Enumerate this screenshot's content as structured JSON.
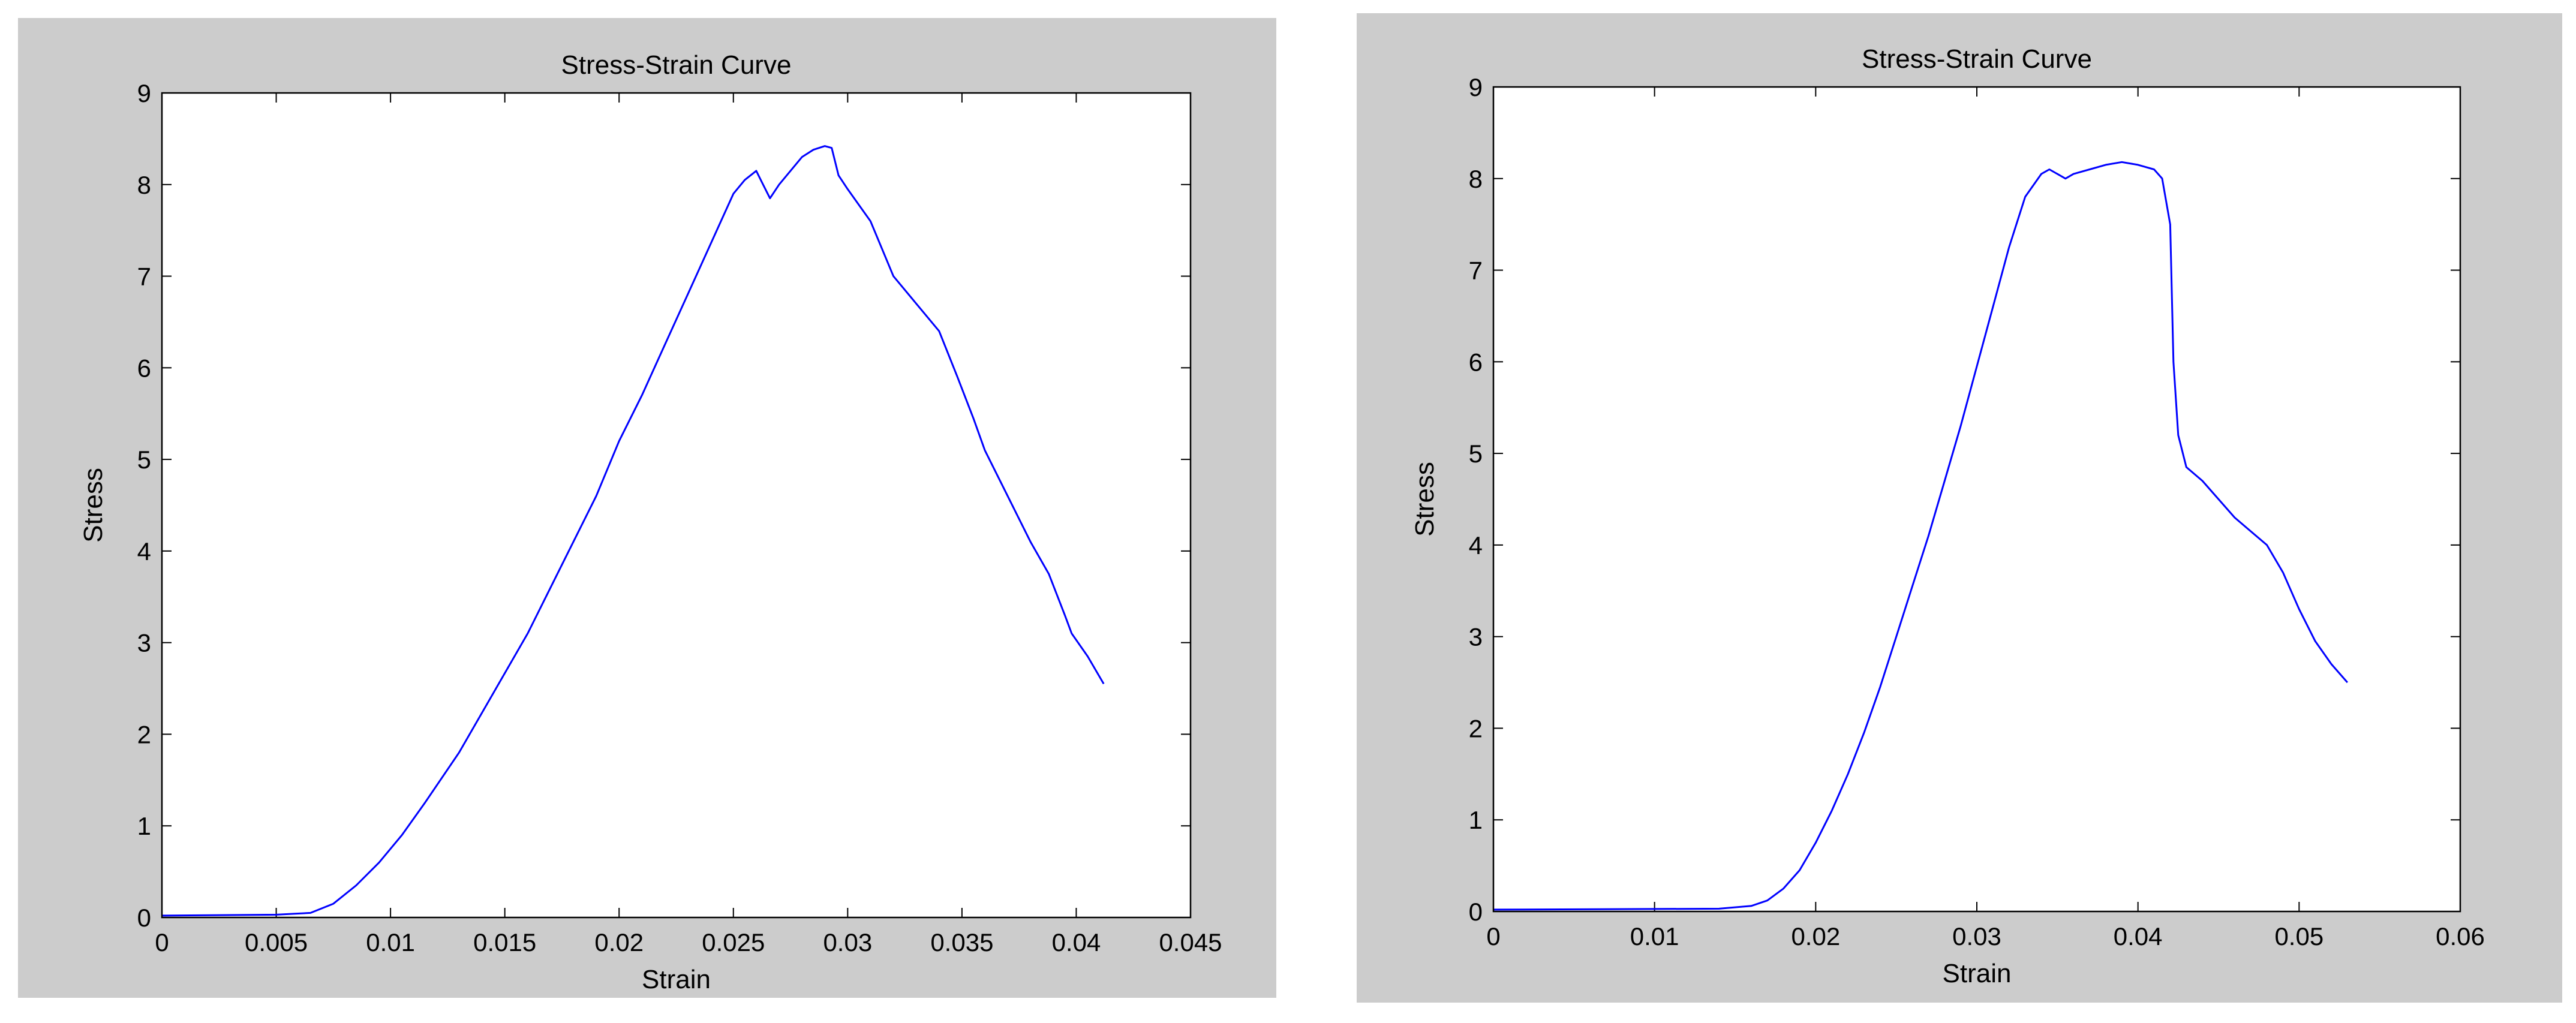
{
  "chart_data": [
    {
      "type": "line",
      "title": "Stress-Strain Curve",
      "xlabel": "Strain",
      "ylabel": "Stress",
      "xlim": [
        0,
        0.045
      ],
      "ylim": [
        0,
        9
      ],
      "xticks": [
        "0",
        "0.005",
        "0.01",
        "0.015",
        "0.02",
        "0.025",
        "0.03",
        "0.035",
        "0.04",
        "0.045"
      ],
      "yticks": [
        "0",
        "1",
        "2",
        "3",
        "4",
        "5",
        "6",
        "7",
        "8",
        "9"
      ],
      "line_color": "#0000ff",
      "grid": false,
      "series": [
        {
          "x": [
            0,
            0.005,
            0.0065,
            0.0075,
            0.0085,
            0.0095,
            0.0105,
            0.0115,
            0.013,
            0.0145,
            0.016,
            0.0175,
            0.019,
            0.02,
            0.021,
            0.022,
            0.023,
            0.024,
            0.025,
            0.0255,
            0.026,
            0.0263,
            0.0266,
            0.027,
            0.028,
            0.0285,
            0.029,
            0.0293,
            0.0296,
            0.03,
            0.031,
            0.032,
            0.033,
            0.034,
            0.0348,
            0.0355,
            0.036,
            0.037,
            0.038,
            0.0388,
            0.0395,
            0.0398,
            0.0405,
            0.0412
          ],
          "y": [
            0.02,
            0.03,
            0.05,
            0.15,
            0.35,
            0.6,
            0.9,
            1.25,
            1.8,
            2.45,
            3.1,
            3.85,
            4.6,
            5.2,
            5.7,
            6.25,
            6.8,
            7.35,
            7.9,
            8.05,
            8.15,
            8.0,
            7.85,
            8.0,
            8.3,
            8.38,
            8.42,
            8.4,
            8.1,
            7.95,
            7.6,
            7.0,
            6.7,
            6.4,
            5.9,
            5.45,
            5.1,
            4.6,
            4.1,
            3.75,
            3.3,
            3.1,
            2.85,
            2.55
          ]
        }
      ]
    },
    {
      "type": "line",
      "title": "Stress-Strain Curve",
      "xlabel": "Strain",
      "ylabel": "Stress",
      "xlim": [
        0,
        0.06
      ],
      "ylim": [
        0,
        9
      ],
      "xticks": [
        "0",
        "0.01",
        "0.02",
        "0.03",
        "0.04",
        "0.05",
        "0.06"
      ],
      "yticks": [
        "0",
        "1",
        "2",
        "3",
        "4",
        "5",
        "6",
        "7",
        "8",
        "9"
      ],
      "line_color": "#0000ff",
      "grid": false,
      "series": [
        {
          "x": [
            0,
            0.014,
            0.016,
            0.017,
            0.018,
            0.019,
            0.02,
            0.021,
            0.022,
            0.023,
            0.024,
            0.025,
            0.026,
            0.027,
            0.028,
            0.029,
            0.03,
            0.031,
            0.032,
            0.033,
            0.034,
            0.0345,
            0.035,
            0.0355,
            0.036,
            0.037,
            0.038,
            0.039,
            0.04,
            0.041,
            0.0415,
            0.042,
            0.0422,
            0.0425,
            0.043,
            0.044,
            0.045,
            0.046,
            0.047,
            0.048,
            0.049,
            0.05,
            0.051,
            0.052,
            0.053
          ],
          "y": [
            0.02,
            0.03,
            0.06,
            0.12,
            0.25,
            0.45,
            0.75,
            1.1,
            1.5,
            1.95,
            2.45,
            3.0,
            3.55,
            4.1,
            4.7,
            5.3,
            5.95,
            6.6,
            7.25,
            7.8,
            8.05,
            8.1,
            8.05,
            8.0,
            8.05,
            8.1,
            8.15,
            8.18,
            8.15,
            8.1,
            8.0,
            7.5,
            6.0,
            5.2,
            4.85,
            4.7,
            4.5,
            4.3,
            4.15,
            4.0,
            3.7,
            3.3,
            2.95,
            2.7,
            2.5
          ]
        }
      ]
    }
  ]
}
